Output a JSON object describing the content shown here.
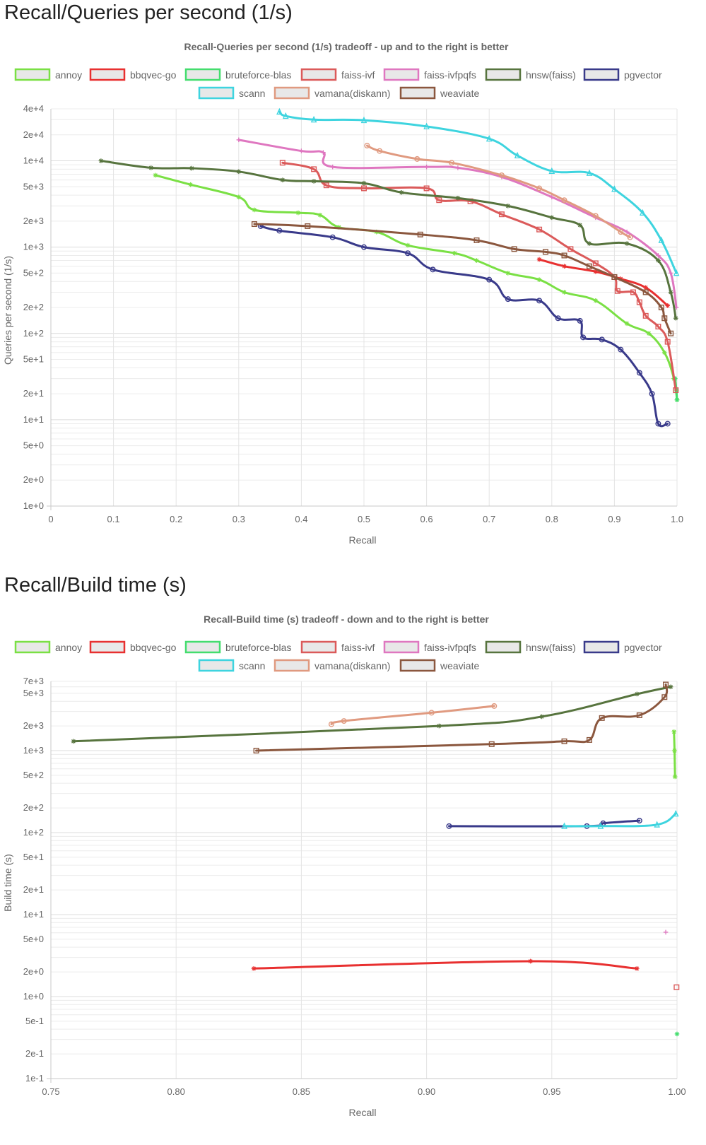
{
  "sections": [
    {
      "heading": "Recall/Queries per second (1/s)"
    },
    {
      "heading": "Recall/Build time (s)"
    }
  ],
  "series_styles": [
    {
      "name": "annoy",
      "color": "#7ae044",
      "marker": "star"
    },
    {
      "name": "bbqvec-go",
      "color": "#e83030",
      "marker": "star"
    },
    {
      "name": "bruteforce-blas",
      "color": "#44dd6e",
      "marker": "star"
    },
    {
      "name": "faiss-ivf",
      "color": "#db5a5a",
      "marker": "square"
    },
    {
      "name": "faiss-ivfpqfs",
      "color": "#df77c0",
      "marker": "cross"
    },
    {
      "name": "hnsw(faiss)",
      "color": "#57743e",
      "marker": "star"
    },
    {
      "name": "pgvector",
      "color": "#393a8a",
      "marker": "circle"
    },
    {
      "name": "scann",
      "color": "#3ed4df",
      "marker": "triangle"
    },
    {
      "name": "vamana(diskann)",
      "color": "#e09a80",
      "marker": "circle"
    },
    {
      "name": "weaviate",
      "color": "#8b573e",
      "marker": "square"
    }
  ],
  "chart_data": [
    {
      "type": "line",
      "title": "Recall-Queries per second (1/s) tradeoff - up and to the right is better",
      "xlabel": "Recall",
      "ylabel": "Queries per second (1/s)",
      "xscale": "linear",
      "yscale": "log",
      "xlim": [
        0,
        1.0
      ],
      "ylim": [
        1,
        40000
      ],
      "xticks": [
        0,
        0.1,
        0.2,
        0.3,
        0.4,
        0.5,
        0.6,
        0.7,
        0.8,
        0.9,
        1.0
      ],
      "xtick_labels": [
        "0",
        "0.1",
        "0.2",
        "0.3",
        "0.4",
        "0.5",
        "0.6",
        "0.7",
        "0.8",
        "0.9",
        "1.0"
      ],
      "yticks": [
        40000,
        20000,
        10000,
        5000,
        2000,
        1000,
        500,
        200,
        100,
        50,
        20,
        10,
        5,
        2,
        1
      ],
      "ytick_labels": [
        "4e+4",
        "2e+4",
        "1e+4",
        "5e+3",
        "2e+3",
        "1e+3",
        "5e+2",
        "2e+2",
        "1e+2",
        "5e+1",
        "2e+1",
        "1e+1",
        "5e+0",
        "2e+0",
        "1e+0"
      ],
      "grid": true,
      "legend_position": "top",
      "series": [
        {
          "name": "annoy",
          "x": [
            0.167,
            0.223,
            0.3,
            0.325,
            0.395,
            0.43,
            0.46,
            0.52,
            0.57,
            0.645,
            0.68,
            0.73,
            0.78,
            0.82,
            0.87,
            0.92,
            0.955,
            0.98,
            0.995,
            1.0
          ],
          "y": [
            6800,
            5300,
            3800,
            2700,
            2500,
            2350,
            1700,
            1500,
            1050,
            850,
            700,
            500,
            420,
            300,
            240,
            130,
            100,
            60,
            30,
            17
          ]
        },
        {
          "name": "bbqvec-go",
          "x": [
            0.78,
            0.82,
            0.87,
            0.91,
            0.95,
            0.985
          ],
          "y": [
            720,
            600,
            520,
            430,
            340,
            210
          ]
        },
        {
          "name": "bruteforce-blas",
          "x": [
            0.997,
            0.999,
            1.0
          ],
          "y": [
            30,
            22,
            17
          ]
        },
        {
          "name": "faiss-ivf",
          "x": [
            0.37,
            0.42,
            0.44,
            0.5,
            0.6,
            0.62,
            0.67,
            0.72,
            0.78,
            0.83,
            0.87,
            0.9,
            0.905,
            0.93,
            0.94,
            0.95,
            0.97,
            0.985,
            0.998
          ],
          "y": [
            9500,
            8000,
            5200,
            4800,
            4800,
            3500,
            3400,
            2400,
            1600,
            950,
            650,
            450,
            310,
            300,
            230,
            160,
            120,
            80,
            22
          ]
        },
        {
          "name": "faiss-ivfpqfs",
          "x": [
            0.3,
            0.4,
            0.435,
            0.45,
            0.6,
            0.65,
            0.72,
            0.8,
            0.87,
            0.92,
            0.97,
            0.99,
            0.999
          ],
          "y": [
            17500,
            13000,
            12500,
            8500,
            8500,
            8300,
            6500,
            3800,
            2200,
            1500,
            800,
            500,
            200
          ]
        },
        {
          "name": "hnsw(faiss)",
          "x": [
            0.08,
            0.16,
            0.225,
            0.3,
            0.37,
            0.42,
            0.5,
            0.56,
            0.65,
            0.73,
            0.8,
            0.845,
            0.86,
            0.92,
            0.97,
            0.99,
            0.998
          ],
          "y": [
            10000,
            8300,
            8200,
            7500,
            6000,
            5800,
            5500,
            4300,
            3700,
            3000,
            2200,
            1800,
            1100,
            1100,
            700,
            300,
            150
          ]
        },
        {
          "name": "pgvector",
          "x": [
            0.335,
            0.365,
            0.45,
            0.5,
            0.57,
            0.61,
            0.7,
            0.73,
            0.78,
            0.81,
            0.845,
            0.85,
            0.88,
            0.91,
            0.94,
            0.96,
            0.97,
            0.985
          ],
          "y": [
            1750,
            1550,
            1300,
            1000,
            850,
            550,
            420,
            250,
            240,
            150,
            140,
            90,
            85,
            65,
            35,
            20,
            9,
            9
          ]
        },
        {
          "name": "scann",
          "x": [
            0.365,
            0.375,
            0.42,
            0.5,
            0.6,
            0.7,
            0.745,
            0.8,
            0.86,
            0.9,
            0.945,
            0.975,
            0.999
          ],
          "y": [
            37000,
            33000,
            30000,
            29500,
            25000,
            18000,
            11500,
            7600,
            7200,
            4700,
            2500,
            1200,
            500
          ]
        },
        {
          "name": "vamana(diskann)",
          "x": [
            0.505,
            0.525,
            0.585,
            0.64,
            0.72,
            0.78,
            0.82,
            0.87,
            0.91,
            0.925
          ],
          "y": [
            15000,
            13000,
            10500,
            9500,
            6800,
            4800,
            3500,
            2300,
            1500,
            1300
          ]
        },
        {
          "name": "weaviate",
          "x": [
            0.325,
            0.41,
            0.59,
            0.68,
            0.74,
            0.79,
            0.82,
            0.86,
            0.9,
            0.95,
            0.975,
            0.98,
            0.99
          ],
          "y": [
            1850,
            1750,
            1400,
            1200,
            950,
            880,
            800,
            600,
            450,
            300,
            200,
            150,
            100
          ]
        }
      ]
    },
    {
      "type": "line",
      "title": "Recall-Build time (s) tradeoff - down and to the right is better",
      "xlabel": "Recall",
      "ylabel": "Build time (s)",
      "xscale": "linear",
      "yscale": "log",
      "xlim": [
        0.75,
        1.0
      ],
      "ylim": [
        0.1,
        7000
      ],
      "xticks": [
        0.75,
        0.8,
        0.85,
        0.9,
        0.95,
        1.0
      ],
      "xtick_labels": [
        "0.75",
        "0.80",
        "0.85",
        "0.90",
        "0.95",
        "1.00"
      ],
      "yticks": [
        7000,
        5000,
        2000,
        1000,
        500,
        200,
        100,
        50,
        20,
        10,
        5,
        2,
        1,
        0.5,
        0.2,
        0.1
      ],
      "ytick_labels": [
        "7e+3",
        "5e+3",
        "2e+3",
        "1e+3",
        "5e+2",
        "2e+2",
        "1e+2",
        "5e+1",
        "2e+1",
        "1e+1",
        "5e+0",
        "2e+0",
        "1e+0",
        "5e-1",
        "2e-1",
        "1e-1"
      ],
      "grid": true,
      "legend_position": "top",
      "series": [
        {
          "name": "annoy",
          "x": [
            0.9988,
            0.999,
            0.9992
          ],
          "y": [
            1700,
            1000,
            480
          ]
        },
        {
          "name": "bbqvec-go",
          "x": [
            0.831,
            0.9415,
            0.984
          ],
          "y": [
            2.2,
            2.7,
            2.2
          ]
        },
        {
          "name": "bruteforce-blas",
          "x": [
            1.0
          ],
          "y": [
            0.35
          ]
        },
        {
          "name": "faiss-ivf",
          "x": [
            0.9998
          ],
          "y": [
            1.3
          ]
        },
        {
          "name": "faiss-ivfpqfs",
          "x": [
            0.9955
          ],
          "y": [
            6.1
          ]
        },
        {
          "name": "hnsw(faiss)",
          "x": [
            0.759,
            0.905,
            0.946,
            0.984,
            0.9975
          ],
          "y": [
            1300,
            2000,
            2600,
            4900,
            6000
          ]
        },
        {
          "name": "pgvector",
          "x": [
            0.909,
            0.964,
            0.9705,
            0.985
          ],
          "y": [
            120,
            120,
            130,
            140
          ]
        },
        {
          "name": "scann",
          "x": [
            0.955,
            0.9695,
            0.992,
            0.9995
          ],
          "y": [
            120,
            120,
            125,
            170
          ]
        },
        {
          "name": "vamana(diskann)",
          "x": [
            0.862,
            0.867,
            0.902,
            0.927
          ],
          "y": [
            2100,
            2300,
            2900,
            3500
          ]
        },
        {
          "name": "weaviate",
          "x": [
            0.832,
            0.926,
            0.955,
            0.965,
            0.97,
            0.985,
            0.995,
            0.9955
          ],
          "y": [
            1000,
            1200,
            1300,
            1350,
            2500,
            2700,
            4500,
            6400
          ]
        }
      ]
    }
  ]
}
